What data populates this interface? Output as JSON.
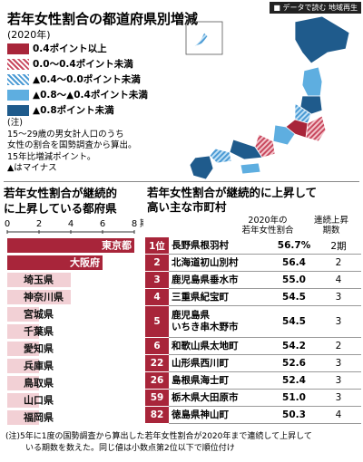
{
  "tag": "■ データで読む 地域再生",
  "map": {
    "title": "若年女性割合の都道府県別増減",
    "subtitle": "(2020年)",
    "legend": [
      {
        "label": "0.4ポイント以上",
        "color": "#a8253a",
        "hatched": false
      },
      {
        "label": "0.0～0.4ポイント未満",
        "color": "#c8485e",
        "hatched": true
      },
      {
        "label": "▲0.4～0.0ポイント未満",
        "color": "#4a9ad4",
        "hatched": true
      },
      {
        "label": "▲0.8～▲0.4ポイント未満",
        "color": "#5eaee0",
        "hatched": false
      },
      {
        "label": "▲0.8ポイント未満",
        "color": "#1f5b8c",
        "hatched": false
      }
    ],
    "note": [
      "(注)",
      "15～29歳の男女計人口のうち",
      "女性の割合を国勢調査から算出。",
      "15年比増減ポイント。",
      "▲はマイナス"
    ]
  },
  "chart_data": {
    "type": "hbar",
    "title": [
      "若年女性割合が継続的",
      "に上昇している都府県"
    ],
    "categories": [
      "東京都",
      "大阪府",
      "埼玉県",
      "神奈川県",
      "宮城県",
      "千葉県",
      "愛知県",
      "兵庫県",
      "鳥取県",
      "山口県",
      "福岡県"
    ],
    "values": [
      8,
      6,
      4,
      4,
      2,
      2,
      2,
      2,
      2,
      2,
      2
    ],
    "colors": [
      "#a8253a",
      "#a8253a",
      "#f2d0d5",
      "#f2d0d5",
      "#f2d0d5",
      "#f2d0d5",
      "#f2d0d5",
      "#f2d0d5",
      "#f2d0d5",
      "#f2d0d5",
      "#f2d0d5"
    ],
    "xlim": [
      0,
      8
    ],
    "xticks": [
      0,
      2,
      4,
      6,
      8
    ],
    "x_unit": "期"
  },
  "table": {
    "title": [
      "若年女性割合が継続的に上昇して",
      "高い主な市町村"
    ],
    "headers": [
      [
        "2020年の",
        "若年女性割合"
      ],
      [
        "連続上昇",
        "期数"
      ]
    ],
    "rows": [
      {
        "rank": "1位",
        "name": [
          "長野県根羽村"
        ],
        "ratio": "56.7%",
        "periods": "2期"
      },
      {
        "rank": "2",
        "name": [
          "北海道初山別村"
        ],
        "ratio": "56.4",
        "periods": "2"
      },
      {
        "rank": "3",
        "name": [
          "鹿児島県垂水市"
        ],
        "ratio": "55.0",
        "periods": "4"
      },
      {
        "rank": "4",
        "name": [
          "三重県紀宝町"
        ],
        "ratio": "54.5",
        "periods": "3"
      },
      {
        "rank": "5",
        "name": [
          "鹿児島県",
          "いちき串木野市"
        ],
        "ratio": "54.5",
        "periods": "3"
      },
      {
        "rank": "6",
        "name": [
          "和歌山県太地町"
        ],
        "ratio": "54.2",
        "periods": "2"
      },
      {
        "rank": "22",
        "name": [
          "山形県西川町"
        ],
        "ratio": "52.6",
        "periods": "3"
      },
      {
        "rank": "26",
        "name": [
          "島根県海士町"
        ],
        "ratio": "52.4",
        "periods": "3"
      },
      {
        "rank": "59",
        "name": [
          "栃木県大田原市"
        ],
        "ratio": "51.0",
        "periods": "3"
      },
      {
        "rank": "82",
        "name": [
          "徳島県神山町"
        ],
        "ratio": "50.3",
        "periods": "4"
      }
    ]
  },
  "footnote": [
    "(注)5年に1度の国勢調査から算出した若年女性割合が2020年まで連続して上昇して",
    "いる期数を数えた。同じ値は小数点第2位以下で順位付け"
  ]
}
